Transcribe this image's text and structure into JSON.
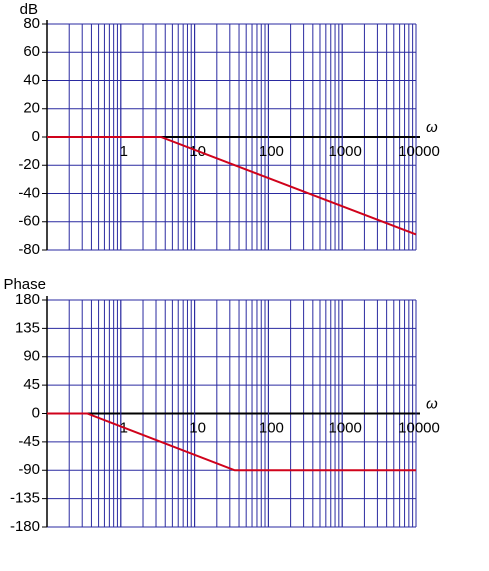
{
  "chart_data": [
    {
      "type": "line",
      "ylabel": "dB",
      "xlabel": "ω",
      "xscale": "log",
      "xlim": [
        0.1,
        10000
      ],
      "xticks": [
        1,
        10,
        100,
        1000,
        10000
      ],
      "ylim": [
        -80,
        80
      ],
      "yticks": [
        -80,
        -60,
        -40,
        -20,
        0,
        20,
        40,
        60,
        80
      ],
      "grid": true,
      "x": [
        0.1,
        3.5,
        10000
      ],
      "series": [
        {
          "color": "#d0021b",
          "values": [
            0,
            0,
            -69
          ]
        }
      ]
    },
    {
      "type": "line",
      "ylabel": "Phase",
      "xlabel": "ω",
      "xscale": "log",
      "xlim": [
        0.1,
        10000
      ],
      "xticks": [
        1,
        10,
        100,
        1000,
        10000
      ],
      "ylim": [
        -180,
        180
      ],
      "yticks": [
        -180,
        -135,
        -90,
        -45,
        0,
        45,
        90,
        135,
        180
      ],
      "grid": true,
      "x": [
        0.1,
        0.35,
        35,
        10000
      ],
      "series": [
        {
          "color": "#d0021b",
          "values": [
            0,
            0,
            -90,
            -90
          ]
        }
      ]
    }
  ]
}
